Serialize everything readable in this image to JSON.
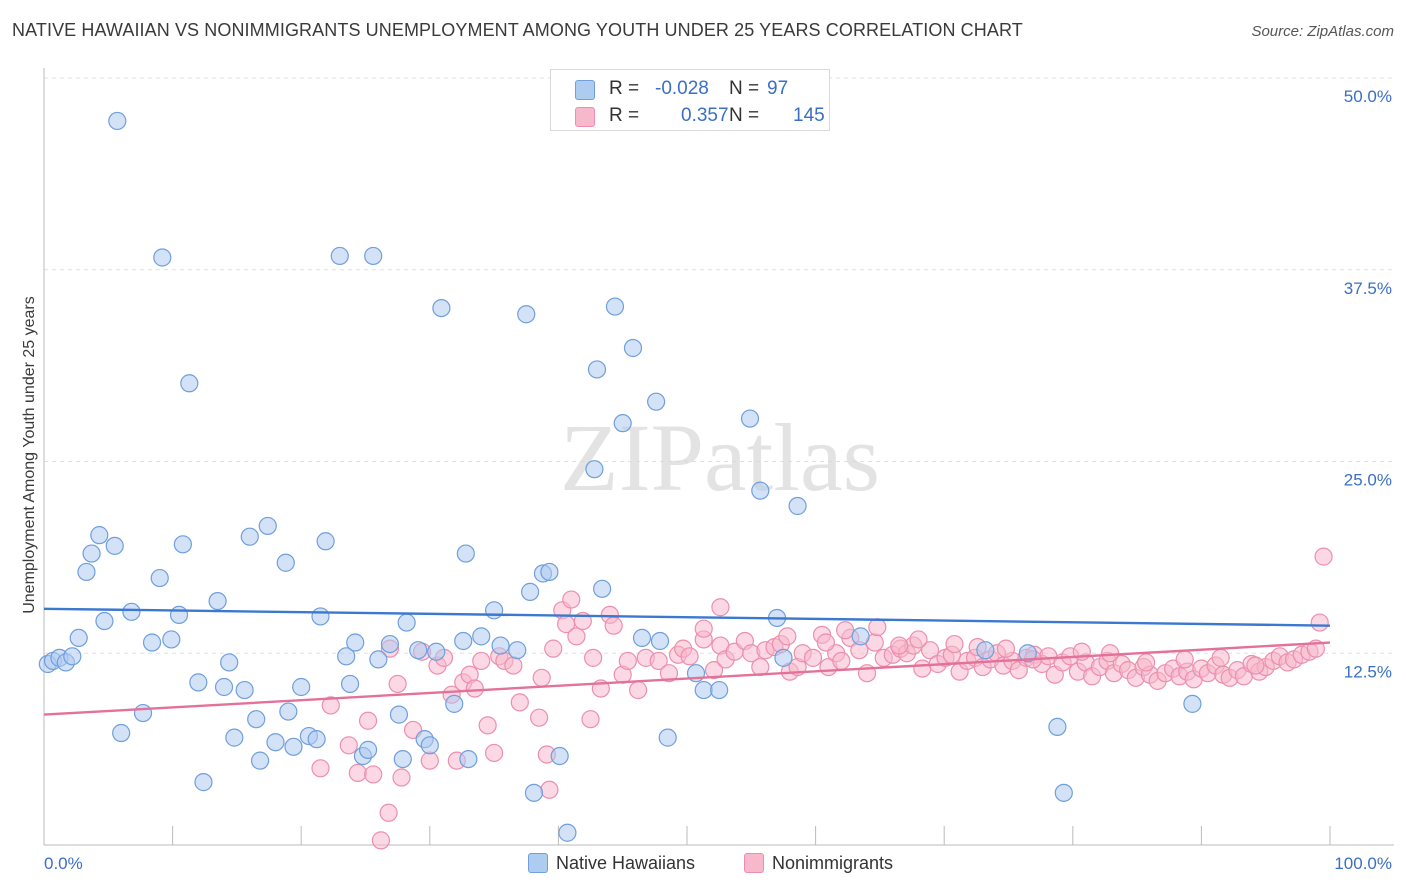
{
  "title": "NATIVE HAWAIIAN VS NONIMMIGRANTS UNEMPLOYMENT AMONG YOUTH UNDER 25 YEARS CORRELATION CHART",
  "source": "Source: ZipAtlas.com",
  "watermark": "ZIPatlas",
  "colors": {
    "blue_fill": "#aecbf0",
    "blue_stroke": "#6f9fdc",
    "blue_line": "#3b78d0",
    "pink_fill": "#f7b8cc",
    "pink_stroke": "#ec8fae",
    "pink_line": "#e4719a",
    "tick_text": "#3a6fc4",
    "grid": "#e0e0e0"
  },
  "legend": {
    "rows": [
      {
        "r_label": "R =",
        "r_value": "-0.028",
        "n_label": "N =",
        "n_value": "97"
      },
      {
        "r_label": "R =",
        "r_value": "0.357",
        "n_label": "N =",
        "n_value": "145"
      }
    ]
  },
  "bottom_legend": {
    "series_a": "Native Hawaiians",
    "series_b": "Nonimmigrants"
  },
  "chart_data": {
    "type": "scatter",
    "title": "NATIVE HAWAIIAN VS NONIMMIGRANTS UNEMPLOYMENT AMONG YOUTH UNDER 25 YEARS CORRELATION CHART",
    "xlabel": "",
    "ylabel": "Unemployment Among Youth under 25 years",
    "xlim": [
      0,
      100
    ],
    "ylim": [
      0,
      50
    ],
    "x_tick_labels": [
      "0.0%",
      "100.0%"
    ],
    "y_ticks": [
      12.5,
      25.0,
      37.5,
      50.0
    ],
    "y_tick_labels": [
      "12.5%",
      "25.0%",
      "37.5%",
      "50.0%"
    ],
    "grid": true,
    "legend_position": "top-center",
    "series": [
      {
        "name": "Native Hawaiians",
        "trend": [
          [
            0,
            15.4
          ],
          [
            100,
            14.3
          ]
        ],
        "points": [
          [
            0.3,
            11.8
          ],
          [
            0.7,
            12.0
          ],
          [
            1.2,
            12.2
          ],
          [
            1.7,
            11.9
          ],
          [
            2.2,
            12.3
          ],
          [
            2.7,
            13.5
          ],
          [
            3.3,
            17.8
          ],
          [
            3.7,
            19.0
          ],
          [
            4.3,
            20.2
          ],
          [
            4.7,
            14.6
          ],
          [
            5.5,
            19.5
          ],
          [
            5.7,
            47.2
          ],
          [
            6.0,
            7.3
          ],
          [
            6.8,
            15.2
          ],
          [
            7.7,
            8.6
          ],
          [
            8.4,
            13.2
          ],
          [
            9.0,
            17.4
          ],
          [
            9.2,
            38.3
          ],
          [
            9.9,
            13.4
          ],
          [
            10.5,
            15.0
          ],
          [
            10.8,
            19.6
          ],
          [
            11.3,
            30.1
          ],
          [
            12.0,
            10.6
          ],
          [
            12.4,
            4.1
          ],
          [
            13.5,
            15.9
          ],
          [
            14.0,
            10.3
          ],
          [
            14.4,
            11.9
          ],
          [
            14.8,
            7.0
          ],
          [
            15.6,
            10.1
          ],
          [
            16.0,
            20.1
          ],
          [
            16.5,
            8.2
          ],
          [
            16.8,
            5.5
          ],
          [
            17.4,
            20.8
          ],
          [
            18.0,
            6.7
          ],
          [
            18.8,
            18.4
          ],
          [
            19.0,
            8.7
          ],
          [
            19.4,
            6.4
          ],
          [
            20.0,
            10.3
          ],
          [
            20.6,
            7.1
          ],
          [
            21.2,
            6.9
          ],
          [
            21.5,
            14.9
          ],
          [
            21.9,
            19.8
          ],
          [
            23.0,
            38.4
          ],
          [
            23.5,
            12.3
          ],
          [
            23.8,
            10.5
          ],
          [
            24.2,
            13.2
          ],
          [
            24.8,
            5.8
          ],
          [
            25.2,
            6.2
          ],
          [
            25.6,
            38.4
          ],
          [
            26.0,
            12.1
          ],
          [
            26.9,
            13.1
          ],
          [
            27.6,
            8.5
          ],
          [
            27.9,
            5.6
          ],
          [
            28.2,
            14.5
          ],
          [
            29.1,
            12.7
          ],
          [
            29.6,
            6.9
          ],
          [
            30.0,
            6.5
          ],
          [
            30.5,
            12.6
          ],
          [
            30.9,
            35.0
          ],
          [
            31.9,
            9.2
          ],
          [
            32.6,
            13.3
          ],
          [
            32.8,
            19.0
          ],
          [
            33.0,
            5.6
          ],
          [
            34.0,
            13.6
          ],
          [
            35.0,
            15.3
          ],
          [
            35.5,
            13.0
          ],
          [
            36.8,
            12.7
          ],
          [
            37.5,
            34.6
          ],
          [
            37.8,
            16.5
          ],
          [
            38.1,
            3.4
          ],
          [
            38.8,
            17.7
          ],
          [
            39.3,
            17.8
          ],
          [
            40.1,
            5.8
          ],
          [
            40.7,
            0.8
          ],
          [
            43.0,
            31.0
          ],
          [
            42.8,
            24.5
          ],
          [
            43.4,
            16.7
          ],
          [
            44.4,
            35.1
          ],
          [
            45.0,
            27.5
          ],
          [
            45.8,
            32.4
          ],
          [
            46.5,
            13.5
          ],
          [
            47.6,
            28.9
          ],
          [
            47.9,
            13.3
          ],
          [
            48.5,
            7.0
          ],
          [
            50.7,
            11.2
          ],
          [
            51.3,
            10.1
          ],
          [
            52.5,
            10.1
          ],
          [
            54.9,
            27.8
          ],
          [
            55.7,
            23.1
          ],
          [
            57.0,
            14.8
          ],
          [
            57.5,
            12.2
          ],
          [
            58.6,
            22.1
          ],
          [
            63.5,
            13.6
          ],
          [
            73.2,
            12.7
          ],
          [
            76.5,
            12.5
          ],
          [
            78.8,
            7.7
          ],
          [
            79.3,
            3.4
          ],
          [
            89.3,
            9.2
          ]
        ]
      },
      {
        "name": "Nonimmigrants",
        "trend": [
          [
            0,
            8.5
          ],
          [
            100,
            13.2
          ]
        ],
        "points": [
          [
            21.5,
            5.0
          ],
          [
            22.3,
            9.1
          ],
          [
            23.7,
            6.5
          ],
          [
            24.4,
            4.7
          ],
          [
            25.2,
            8.1
          ],
          [
            25.6,
            4.6
          ],
          [
            26.2,
            0.3
          ],
          [
            26.8,
            2.1
          ],
          [
            26.9,
            12.8
          ],
          [
            27.5,
            10.5
          ],
          [
            27.8,
            4.4
          ],
          [
            28.7,
            7.5
          ],
          [
            29.4,
            12.6
          ],
          [
            30.0,
            5.5
          ],
          [
            30.6,
            11.7
          ],
          [
            31.1,
            12.2
          ],
          [
            31.7,
            9.8
          ],
          [
            32.1,
            5.5
          ],
          [
            32.6,
            10.6
          ],
          [
            33.1,
            11.1
          ],
          [
            33.5,
            10.2
          ],
          [
            34.0,
            12.0
          ],
          [
            34.5,
            7.8
          ],
          [
            35.0,
            6.0
          ],
          [
            35.4,
            12.3
          ],
          [
            35.8,
            12.0
          ],
          [
            36.5,
            11.7
          ],
          [
            37.0,
            9.3
          ],
          [
            38.5,
            8.3
          ],
          [
            38.7,
            10.9
          ],
          [
            39.1,
            5.9
          ],
          [
            39.3,
            3.6
          ],
          [
            39.6,
            12.8
          ],
          [
            40.3,
            15.3
          ],
          [
            40.6,
            14.4
          ],
          [
            41.0,
            16.0
          ],
          [
            41.4,
            13.6
          ],
          [
            41.9,
            14.6
          ],
          [
            42.5,
            8.2
          ],
          [
            42.7,
            12.2
          ],
          [
            43.3,
            10.2
          ],
          [
            44.0,
            15.0
          ],
          [
            44.3,
            14.3
          ],
          [
            45.0,
            11.1
          ],
          [
            45.4,
            12.0
          ],
          [
            46.2,
            10.1
          ],
          [
            46.8,
            12.2
          ],
          [
            47.8,
            12.0
          ],
          [
            48.6,
            11.2
          ],
          [
            49.3,
            12.4
          ],
          [
            49.7,
            12.8
          ],
          [
            50.2,
            12.3
          ],
          [
            51.3,
            13.4
          ],
          [
            52.1,
            11.4
          ],
          [
            52.6,
            13.0
          ],
          [
            53.0,
            12.1
          ],
          [
            53.7,
            12.6
          ],
          [
            54.5,
            13.3
          ],
          [
            55.0,
            12.5
          ],
          [
            55.7,
            11.6
          ],
          [
            56.1,
            12.7
          ],
          [
            56.8,
            12.9
          ],
          [
            57.3,
            13.1
          ],
          [
            58.0,
            11.3
          ],
          [
            58.6,
            11.6
          ],
          [
            59.0,
            12.5
          ],
          [
            59.8,
            12.2
          ],
          [
            60.5,
            13.7
          ],
          [
            61.0,
            11.6
          ],
          [
            61.6,
            12.5
          ],
          [
            62.0,
            12.0
          ],
          [
            62.7,
            13.5
          ],
          [
            63.4,
            12.7
          ],
          [
            64.0,
            11.2
          ],
          [
            64.6,
            13.2
          ],
          [
            65.3,
            12.2
          ],
          [
            66.0,
            12.4
          ],
          [
            66.6,
            12.8
          ],
          [
            67.1,
            12.5
          ],
          [
            67.6,
            13.0
          ],
          [
            68.3,
            11.5
          ],
          [
            68.9,
            12.7
          ],
          [
            69.5,
            11.8
          ],
          [
            70.1,
            12.2
          ],
          [
            70.6,
            12.4
          ],
          [
            71.2,
            11.3
          ],
          [
            71.8,
            12.0
          ],
          [
            72.4,
            12.2
          ],
          [
            73.0,
            11.6
          ],
          [
            73.6,
            12.1
          ],
          [
            74.1,
            12.5
          ],
          [
            74.6,
            11.7
          ],
          [
            75.3,
            12.0
          ],
          [
            75.8,
            11.4
          ],
          [
            76.4,
            12.2
          ],
          [
            77.0,
            12.4
          ],
          [
            77.6,
            11.8
          ],
          [
            78.1,
            12.3
          ],
          [
            78.6,
            11.1
          ],
          [
            79.2,
            11.9
          ],
          [
            79.8,
            12.3
          ],
          [
            80.4,
            11.3
          ],
          [
            81.0,
            11.9
          ],
          [
            81.5,
            11.0
          ],
          [
            82.1,
            11.6
          ],
          [
            82.7,
            12.0
          ],
          [
            83.2,
            11.2
          ],
          [
            83.8,
            11.8
          ],
          [
            84.3,
            11.4
          ],
          [
            84.9,
            10.9
          ],
          [
            85.5,
            11.6
          ],
          [
            86.0,
            11.1
          ],
          [
            86.6,
            10.7
          ],
          [
            87.2,
            11.2
          ],
          [
            87.8,
            11.5
          ],
          [
            88.3,
            11.0
          ],
          [
            88.9,
            11.3
          ],
          [
            89.4,
            10.8
          ],
          [
            90.0,
            11.5
          ],
          [
            90.5,
            11.2
          ],
          [
            91.1,
            11.7
          ],
          [
            91.7,
            11.1
          ],
          [
            92.2,
            10.9
          ],
          [
            92.8,
            11.4
          ],
          [
            93.3,
            11.0
          ],
          [
            93.9,
            11.8
          ],
          [
            94.5,
            11.3
          ],
          [
            95.0,
            11.6
          ],
          [
            95.6,
            12.0
          ],
          [
            96.1,
            12.3
          ],
          [
            96.7,
            11.9
          ],
          [
            97.2,
            12.1
          ],
          [
            97.8,
            12.4
          ],
          [
            98.4,
            12.6
          ],
          [
            98.9,
            12.8
          ],
          [
            99.2,
            14.5
          ],
          [
            99.5,
            18.8
          ],
          [
            52.6,
            15.5
          ],
          [
            51.3,
            14.1
          ],
          [
            57.8,
            13.6
          ],
          [
            60.8,
            13.2
          ],
          [
            62.3,
            14.0
          ],
          [
            64.8,
            14.2
          ],
          [
            66.5,
            13.0
          ],
          [
            68.0,
            13.4
          ],
          [
            70.8,
            13.1
          ],
          [
            72.6,
            12.9
          ],
          [
            74.8,
            12.8
          ],
          [
            76.9,
            12.1
          ],
          [
            80.7,
            12.6
          ],
          [
            82.9,
            12.5
          ],
          [
            85.7,
            11.9
          ],
          [
            88.7,
            12.1
          ],
          [
            91.5,
            12.2
          ],
          [
            94.2,
            11.7
          ]
        ]
      }
    ]
  }
}
